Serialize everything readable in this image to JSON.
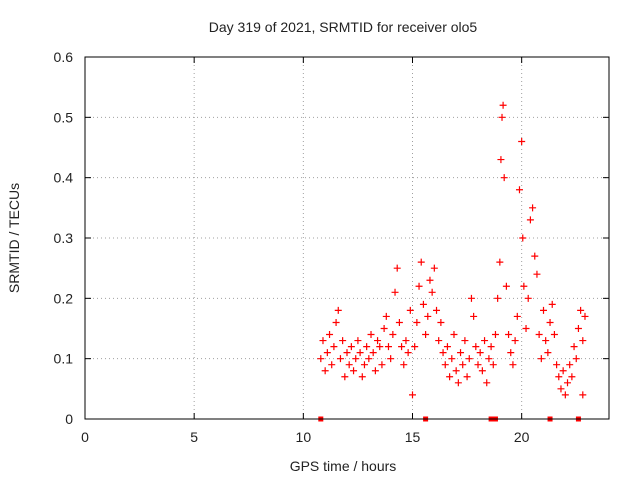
{
  "chart_data": {
    "type": "scatter",
    "title": "Day 319 of 2021, SRMTID for receiver olo5",
    "xlabel": "GPS time / hours",
    "ylabel": "SRMTID / TECUs",
    "xlim": [
      0,
      24
    ],
    "ylim": [
      0,
      0.6
    ],
    "xticks": [
      "0",
      "5",
      "10",
      "15",
      "20"
    ],
    "xtick_values": [
      0,
      5,
      10,
      15,
      20
    ],
    "yticks": [
      "0",
      "0.1",
      "0.2",
      "0.3",
      "0.4",
      "0.5",
      "0.6"
    ],
    "ytick_values": [
      0,
      0.1,
      0.2,
      0.3,
      0.4,
      0.5,
      0.6
    ],
    "grid": true,
    "marker": "+",
    "color": "#ff0000",
    "axis_color": "#000000",
    "series": [
      {
        "name": "SRMTID",
        "points": [
          [
            10.8,
            0.1
          ],
          [
            10.9,
            0.13
          ],
          [
            11.0,
            0.08
          ],
          [
            11.1,
            0.11
          ],
          [
            11.2,
            0.14
          ],
          [
            11.3,
            0.09
          ],
          [
            11.4,
            0.12
          ],
          [
            11.5,
            0.16
          ],
          [
            11.6,
            0.18
          ],
          [
            11.7,
            0.1
          ],
          [
            11.8,
            0.13
          ],
          [
            11.9,
            0.07
          ],
          [
            12.0,
            0.11
          ],
          [
            12.1,
            0.09
          ],
          [
            12.2,
            0.12
          ],
          [
            12.3,
            0.08
          ],
          [
            12.4,
            0.1
          ],
          [
            12.5,
            0.13
          ],
          [
            12.6,
            0.11
          ],
          [
            12.7,
            0.07
          ],
          [
            12.8,
            0.09
          ],
          [
            12.9,
            0.12
          ],
          [
            13.0,
            0.1
          ],
          [
            13.1,
            0.14
          ],
          [
            13.2,
            0.11
          ],
          [
            13.3,
            0.08
          ],
          [
            13.4,
            0.13
          ],
          [
            13.5,
            0.12
          ],
          [
            13.6,
            0.09
          ],
          [
            13.7,
            0.15
          ],
          [
            13.8,
            0.17
          ],
          [
            13.9,
            0.12
          ],
          [
            14.0,
            0.1
          ],
          [
            14.1,
            0.14
          ],
          [
            14.2,
            0.21
          ],
          [
            14.3,
            0.25
          ],
          [
            14.4,
            0.16
          ],
          [
            14.5,
            0.12
          ],
          [
            14.6,
            0.09
          ],
          [
            14.7,
            0.13
          ],
          [
            14.8,
            0.11
          ],
          [
            14.9,
            0.18
          ],
          [
            15.0,
            0.04
          ],
          [
            15.1,
            0.12
          ],
          [
            15.2,
            0.16
          ],
          [
            15.3,
            0.22
          ],
          [
            15.4,
            0.26
          ],
          [
            15.5,
            0.19
          ],
          [
            15.6,
            0.14
          ],
          [
            15.7,
            0.17
          ],
          [
            15.8,
            0.23
          ],
          [
            15.9,
            0.21
          ],
          [
            16.0,
            0.25
          ],
          [
            16.1,
            0.18
          ],
          [
            16.2,
            0.13
          ],
          [
            16.3,
            0.16
          ],
          [
            16.4,
            0.11
          ],
          [
            16.5,
            0.09
          ],
          [
            16.6,
            0.12
          ],
          [
            16.7,
            0.07
          ],
          [
            16.8,
            0.1
          ],
          [
            16.9,
            0.14
          ],
          [
            17.0,
            0.08
          ],
          [
            17.1,
            0.06
          ],
          [
            17.2,
            0.11
          ],
          [
            17.3,
            0.09
          ],
          [
            17.4,
            0.13
          ],
          [
            17.5,
            0.07
          ],
          [
            17.6,
            0.1
          ],
          [
            17.7,
            0.2
          ],
          [
            17.8,
            0.17
          ],
          [
            17.9,
            0.12
          ],
          [
            18.0,
            0.09
          ],
          [
            18.1,
            0.11
          ],
          [
            18.2,
            0.08
          ],
          [
            18.3,
            0.13
          ],
          [
            18.4,
            0.06
          ],
          [
            18.5,
            0.1
          ],
          [
            18.6,
            0.12
          ],
          [
            18.7,
            0.09
          ],
          [
            18.8,
            0.14
          ],
          [
            18.9,
            0.2
          ],
          [
            19.0,
            0.26
          ],
          [
            19.05,
            0.43
          ],
          [
            19.1,
            0.5
          ],
          [
            19.15,
            0.52
          ],
          [
            19.2,
            0.4
          ],
          [
            19.3,
            0.22
          ],
          [
            19.4,
            0.14
          ],
          [
            19.5,
            0.11
          ],
          [
            19.6,
            0.09
          ],
          [
            19.7,
            0.13
          ],
          [
            19.8,
            0.17
          ],
          [
            19.9,
            0.38
          ],
          [
            20.0,
            0.46
          ],
          [
            20.05,
            0.3
          ],
          [
            20.1,
            0.22
          ],
          [
            20.2,
            0.15
          ],
          [
            20.3,
            0.2
          ],
          [
            20.4,
            0.33
          ],
          [
            20.5,
            0.35
          ],
          [
            20.6,
            0.27
          ],
          [
            20.7,
            0.24
          ],
          [
            20.8,
            0.14
          ],
          [
            20.9,
            0.1
          ],
          [
            21.0,
            0.18
          ],
          [
            21.1,
            0.13
          ],
          [
            21.2,
            0.11
          ],
          [
            21.3,
            0.16
          ],
          [
            21.4,
            0.19
          ],
          [
            21.5,
            0.14
          ],
          [
            21.6,
            0.09
          ],
          [
            21.7,
            0.07
          ],
          [
            21.8,
            0.05
          ],
          [
            21.9,
            0.08
          ],
          [
            22.0,
            0.04
          ],
          [
            22.1,
            0.06
          ],
          [
            22.2,
            0.09
          ],
          [
            22.3,
            0.07
          ],
          [
            22.4,
            0.12
          ],
          [
            22.5,
            0.1
          ],
          [
            22.6,
            0.15
          ],
          [
            22.7,
            0.18
          ],
          [
            22.8,
            0.13
          ],
          [
            22.9,
            0.17
          ],
          [
            22.8,
            0.04
          ]
        ]
      }
    ],
    "baseline_markers_x": [
      10.8,
      15.6,
      18.6,
      18.8,
      21.3,
      22.6
    ]
  }
}
